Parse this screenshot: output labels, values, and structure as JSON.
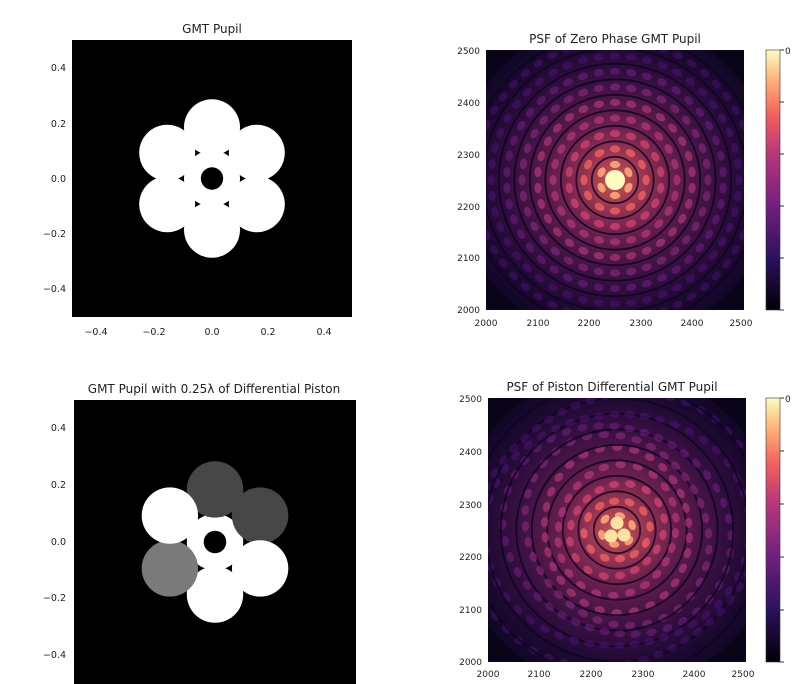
{
  "colors": {
    "background": "#000000",
    "pupil": "#ffffff",
    "segment_dark": "#484848",
    "segment_mid": "#7c7c7c",
    "colormap": "magma"
  },
  "chart_data": [
    {
      "type": "heatmap",
      "title": "GMT Pupil",
      "xlim": [
        -0.5,
        0.5
      ],
      "ylim": [
        -0.5,
        0.5
      ],
      "x_ticks": [
        "−0.4",
        "−0.2",
        "0.0",
        "0.2",
        "0.4"
      ],
      "y_ticks": [
        "0.4",
        "0.2",
        "0.0",
        "−0.2",
        "−0.4"
      ],
      "segments": [
        {
          "name": "center",
          "x": 0.0,
          "y": 0.0,
          "gray": 1.0
        },
        {
          "name": "top",
          "x": 0.0,
          "y": 0.185,
          "gray": 1.0
        },
        {
          "name": "upper-right",
          "x": 0.16,
          "y": 0.093,
          "gray": 1.0
        },
        {
          "name": "lower-right",
          "x": 0.16,
          "y": -0.093,
          "gray": 1.0
        },
        {
          "name": "bottom",
          "x": 0.0,
          "y": -0.185,
          "gray": 1.0
        },
        {
          "name": "lower-left",
          "x": -0.16,
          "y": -0.093,
          "gray": 1.0
        },
        {
          "name": "upper-left",
          "x": -0.16,
          "y": 0.093,
          "gray": 1.0
        }
      ],
      "segment_radius": 0.1,
      "central_obscuration_radius": 0.04
    },
    {
      "type": "heatmap",
      "title": "PSF of Zero Phase GMT Pupil",
      "xlim": [
        2000,
        2500
      ],
      "ylim": [
        2000,
        2500
      ],
      "x_ticks": [
        "2000",
        "2100",
        "2200",
        "2300",
        "2400",
        "2500"
      ],
      "y_ticks": [
        "2500",
        "2400",
        "2300",
        "2200",
        "2100",
        "2000"
      ],
      "peak": {
        "x": 2250,
        "y": 2250
      },
      "colorbar": {
        "colormap": "magma",
        "top_label": "0"
      }
    },
    {
      "type": "heatmap",
      "title": "GMT Pupil with 0.25λ of Differential Piston",
      "xlim": [
        -0.5,
        0.5
      ],
      "ylim": [
        -0.5,
        0.5
      ],
      "y_ticks": [
        "0.4",
        "0.2",
        "0.0",
        "−0.2",
        "−0.4"
      ],
      "segments": [
        {
          "name": "center",
          "x": 0.0,
          "y": 0.0,
          "gray": 1.0
        },
        {
          "name": "top",
          "x": 0.0,
          "y": 0.185,
          "gray": 0.28
        },
        {
          "name": "upper-right",
          "x": 0.16,
          "y": 0.093,
          "gray": 0.28
        },
        {
          "name": "lower-right",
          "x": 0.16,
          "y": -0.093,
          "gray": 1.0
        },
        {
          "name": "bottom",
          "x": 0.0,
          "y": -0.185,
          "gray": 1.0
        },
        {
          "name": "lower-left",
          "x": -0.16,
          "y": -0.093,
          "gray": 0.48
        },
        {
          "name": "upper-left",
          "x": -0.16,
          "y": 0.093,
          "gray": 1.0
        }
      ],
      "segment_radius": 0.1,
      "central_obscuration_radius": 0.04
    },
    {
      "type": "heatmap",
      "title": "PSF of Piston Differential GMT Pupil",
      "xlim": [
        2000,
        2500
      ],
      "ylim": [
        2000,
        2500
      ],
      "x_ticks": [
        "2000",
        "2100",
        "2200",
        "2300",
        "2400",
        "2500"
      ],
      "y_ticks": [
        "2500",
        "2400",
        "2300",
        "2200",
        "2100",
        "2000"
      ],
      "peak": {
        "x": 2250,
        "y": 2250
      },
      "colorbar": {
        "colormap": "magma",
        "top_label": "0"
      }
    }
  ]
}
